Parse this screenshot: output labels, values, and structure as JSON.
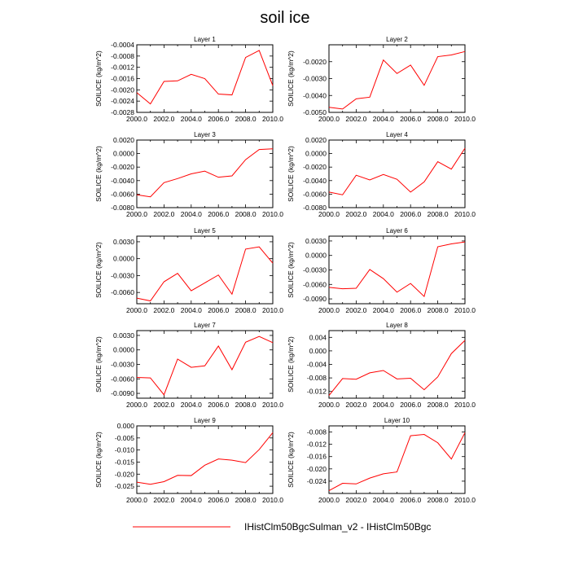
{
  "figure": {
    "title": "soil ice",
    "legend_label": "IHistClm50BgcSulman_v2 - IHistClm50Bgc",
    "line_color": "#ff0000"
  },
  "chart_data": [
    {
      "type": "line",
      "title": "Layer 1",
      "xlabel": "",
      "ylabel": "SOILICE  (kg/m^2)",
      "xlim": [
        2000,
        2010
      ],
      "ylim": [
        -0.0028,
        -0.0004
      ],
      "x_ticks": [
        "2000.0",
        "2002.0",
        "2004.0",
        "2006.0",
        "2008.0",
        "2010.0"
      ],
      "y_ticks": [
        -0.0028,
        -0.0024,
        -0.002,
        -0.0016,
        -0.0012,
        -0.0008,
        -0.0004
      ],
      "y_tick_labels": [
        "-0.0028",
        "-0.0024",
        "-0.0020",
        "-0.0016",
        "-0.0012",
        "-0.0008",
        "-0.0004"
      ],
      "x": [
        2000,
        2001,
        2002,
        2003,
        2004,
        2005,
        2006,
        2007,
        2008,
        2009,
        2010
      ],
      "series": [
        {
          "values": [
            -0.0021,
            -0.0025,
            -0.0017,
            -0.00168,
            -0.00145,
            -0.0016,
            -0.00215,
            -0.00218,
            -0.00085,
            -0.0006,
            -0.00185
          ]
        }
      ]
    },
    {
      "type": "line",
      "title": "Layer 2",
      "xlabel": "",
      "ylabel": "SOILICE  (kg/m^2)",
      "xlim": [
        2000,
        2010
      ],
      "ylim": [
        -0.005,
        -0.001
      ],
      "x_ticks": [
        "2000.0",
        "2002.0",
        "2004.0",
        "2006.0",
        "2008.0",
        "2010.0"
      ],
      "y_ticks": [
        -0.005,
        -0.004,
        -0.003,
        -0.002
      ],
      "y_tick_labels": [
        "-0.0050",
        "-0.0040",
        "-0.0030",
        "-0.0020"
      ],
      "x": [
        2000,
        2001,
        2002,
        2003,
        2004,
        2005,
        2006,
        2007,
        2008,
        2009,
        2010
      ],
      "series": [
        {
          "values": [
            -0.0047,
            -0.0048,
            -0.0042,
            -0.0041,
            -0.0019,
            -0.0027,
            -0.0022,
            -0.0034,
            -0.0017,
            -0.0016,
            -0.0014
          ]
        }
      ]
    },
    {
      "type": "line",
      "title": "Layer 3",
      "xlabel": "",
      "ylabel": "SOILICE  (kg/m^2)",
      "xlim": [
        2000,
        2010
      ],
      "ylim": [
        -0.008,
        0.002
      ],
      "x_ticks": [
        "2000.0",
        "2002.0",
        "2004.0",
        "2006.0",
        "2008.0",
        "2010.0"
      ],
      "y_ticks": [
        -0.008,
        -0.006,
        -0.004,
        -0.002,
        0.0,
        0.002
      ],
      "y_tick_labels": [
        "-0.0080",
        "-0.0060",
        "-0.0040",
        "-0.0020",
        "0.0000",
        "0.0020"
      ],
      "x": [
        2000,
        2001,
        2002,
        2003,
        2004,
        2005,
        2006,
        2007,
        2008,
        2009,
        2010
      ],
      "series": [
        {
          "values": [
            -0.0061,
            -0.0064,
            -0.0043,
            -0.0037,
            -0.003,
            -0.0026,
            -0.0035,
            -0.0033,
            -0.0009,
            0.0006,
            0.0007
          ]
        }
      ]
    },
    {
      "type": "line",
      "title": "Layer 4",
      "xlabel": "",
      "ylabel": "SOILICE  (kg/m^2)",
      "xlim": [
        2000,
        2010
      ],
      "ylim": [
        -0.008,
        0.002
      ],
      "x_ticks": [
        "2000.0",
        "2002.0",
        "2004.0",
        "2006.0",
        "2008.0",
        "2010.0"
      ],
      "y_ticks": [
        -0.008,
        -0.006,
        -0.004,
        -0.002,
        0.0,
        0.002
      ],
      "y_tick_labels": [
        "-0.0080",
        "-0.0060",
        "-0.0040",
        "-0.0020",
        "0.0000",
        "0.0020"
      ],
      "x": [
        2000,
        2001,
        2002,
        2003,
        2004,
        2005,
        2006,
        2007,
        2008,
        2009,
        2010
      ],
      "series": [
        {
          "values": [
            -0.0057,
            -0.0061,
            -0.0032,
            -0.0039,
            -0.0031,
            -0.0038,
            -0.0057,
            -0.0042,
            -0.0012,
            -0.0023,
            0.0008
          ]
        }
      ]
    },
    {
      "type": "line",
      "title": "Layer 5",
      "xlabel": "",
      "ylabel": "SOILICE  (kg/m^2)",
      "xlim": [
        2000,
        2010
      ],
      "ylim": [
        -0.008,
        0.004
      ],
      "x_ticks": [
        "2000.0",
        "2002.0",
        "2004.0",
        "2006.0",
        "2008.0",
        "2010.0"
      ],
      "y_ticks": [
        -0.006,
        -0.003,
        0.0,
        0.003
      ],
      "y_tick_labels": [
        "-0.0060",
        "-0.0030",
        "0.0000",
        "0.0030"
      ],
      "x": [
        2000,
        2001,
        2002,
        2003,
        2004,
        2005,
        2006,
        2007,
        2008,
        2009,
        2010
      ],
      "series": [
        {
          "values": [
            -0.007,
            -0.0075,
            -0.0041,
            -0.0026,
            -0.0057,
            -0.0043,
            -0.0029,
            -0.0063,
            0.0017,
            0.0021,
            -0.0008
          ]
        }
      ]
    },
    {
      "type": "line",
      "title": "Layer 6",
      "xlabel": "",
      "ylabel": "SOILICE  (kg/m^2)",
      "xlim": [
        2000,
        2010
      ],
      "ylim": [
        -0.01,
        0.004
      ],
      "x_ticks": [
        "2000.0",
        "2002.0",
        "2004.0",
        "2006.0",
        "2008.0",
        "2010.0"
      ],
      "y_ticks": [
        -0.009,
        -0.006,
        -0.003,
        0.0,
        0.003
      ],
      "y_tick_labels": [
        "-0.0090",
        "-0.0060",
        "-0.0030",
        "0.0000",
        "0.0030"
      ],
      "x": [
        2000,
        2001,
        2002,
        2003,
        2004,
        2005,
        2006,
        2007,
        2008,
        2009,
        2010
      ],
      "series": [
        {
          "values": [
            -0.0066,
            -0.0069,
            -0.0068,
            -0.0029,
            -0.0048,
            -0.0076,
            -0.0058,
            -0.0085,
            0.0018,
            0.0024,
            0.0028
          ]
        }
      ]
    },
    {
      "type": "line",
      "title": "Layer 7",
      "xlabel": "",
      "ylabel": "SOILICE  (kg/m^2)",
      "xlim": [
        2000,
        2010
      ],
      "ylim": [
        -0.01,
        0.004
      ],
      "x_ticks": [
        "2000.0",
        "2002.0",
        "2004.0",
        "2006.0",
        "2008.0",
        "2010.0"
      ],
      "y_ticks": [
        -0.009,
        -0.006,
        -0.003,
        0.0,
        0.003
      ],
      "y_tick_labels": [
        "-0.0090",
        "-0.0060",
        "-0.0030",
        "0.0000",
        "0.0030"
      ],
      "x": [
        2000,
        2001,
        2002,
        2003,
        2004,
        2005,
        2006,
        2007,
        2008,
        2009,
        2010
      ],
      "series": [
        {
          "values": [
            -0.0057,
            -0.0058,
            -0.0093,
            -0.0019,
            -0.0036,
            -0.0033,
            0.0008,
            -0.0041,
            0.0016,
            0.0028,
            0.0015
          ]
        }
      ]
    },
    {
      "type": "line",
      "title": "Layer 8",
      "xlabel": "",
      "ylabel": "SOILICE  (kg/m^2)",
      "xlim": [
        2000,
        2010
      ],
      "ylim": [
        -0.014,
        0.006
      ],
      "x_ticks": [
        "2000.0",
        "2002.0",
        "2004.0",
        "2006.0",
        "2008.0",
        "2010.0"
      ],
      "y_ticks": [
        -0.012,
        -0.008,
        -0.004,
        0.0,
        0.004
      ],
      "y_tick_labels": [
        "-0.012",
        "-0.008",
        "-0.004",
        "0.000",
        "0.004"
      ],
      "x": [
        2000,
        2001,
        2002,
        2003,
        2004,
        2005,
        2006,
        2007,
        2008,
        2009,
        2010
      ],
      "series": [
        {
          "values": [
            -0.0132,
            -0.0082,
            -0.0084,
            -0.0065,
            -0.0058,
            -0.0083,
            -0.0081,
            -0.0115,
            -0.0077,
            -0.0008,
            0.0031
          ]
        }
      ]
    },
    {
      "type": "line",
      "title": "Layer 9",
      "xlabel": "",
      "ylabel": "SOILICE  (kg/m^2)",
      "xlim": [
        2000,
        2010
      ],
      "ylim": [
        -0.028,
        0.0
      ],
      "x_ticks": [
        "2000.0",
        "2002.0",
        "2004.0",
        "2006.0",
        "2008.0",
        "2010.0"
      ],
      "y_ticks": [
        -0.025,
        -0.02,
        -0.015,
        -0.01,
        -0.005,
        0.0
      ],
      "y_tick_labels": [
        "-0.025",
        "-0.020",
        "-0.015",
        "-0.010",
        "-0.005",
        "0.000"
      ],
      "x": [
        2000,
        2001,
        2002,
        2003,
        2004,
        2005,
        2006,
        2007,
        2008,
        2009,
        2010
      ],
      "series": [
        {
          "values": [
            -0.0233,
            -0.0242,
            -0.0231,
            -0.0205,
            -0.0206,
            -0.0163,
            -0.0137,
            -0.0142,
            -0.0152,
            -0.0098,
            -0.0028
          ]
        }
      ]
    },
    {
      "type": "line",
      "title": "Layer 10",
      "xlabel": "",
      "ylabel": "SOILICE  (kg/m^2)",
      "xlim": [
        2000,
        2010
      ],
      "ylim": [
        -0.028,
        -0.006
      ],
      "x_ticks": [
        "2000.0",
        "2002.0",
        "2004.0",
        "2006.0",
        "2008.0",
        "2010.0"
      ],
      "y_ticks": [
        -0.024,
        -0.02,
        -0.016,
        -0.012,
        -0.008
      ],
      "y_tick_labels": [
        "-0.024",
        "-0.020",
        "-0.016",
        "-0.012",
        "-0.008"
      ],
      "x": [
        2000,
        2001,
        2002,
        2003,
        2004,
        2005,
        2006,
        2007,
        2008,
        2009,
        2010
      ],
      "series": [
        {
          "values": [
            -0.0271,
            -0.0247,
            -0.0249,
            -0.023,
            -0.0216,
            -0.021,
            -0.0092,
            -0.0088,
            -0.0115,
            -0.0168,
            -0.0082
          ]
        }
      ]
    }
  ]
}
